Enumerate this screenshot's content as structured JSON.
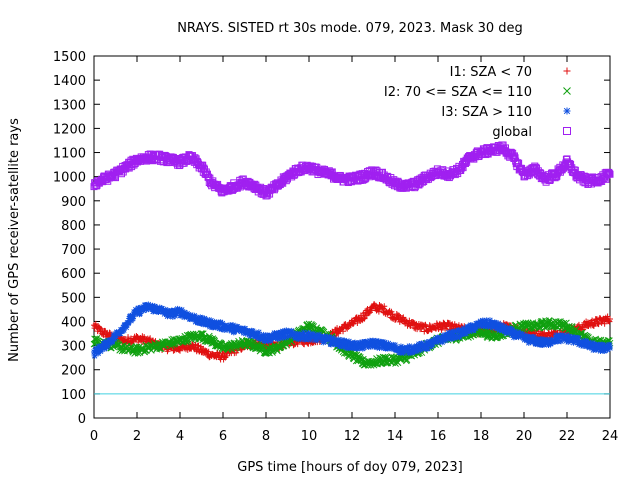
{
  "chart_data": {
    "type": "scatter",
    "title": "NRAYS. SISTED rt 30s mode. 079, 2023. Mask 30 deg",
    "xlabel": "GPS time [hours of doy 079, 2023]",
    "ylabel": "Number of GPS receiver-satellite rays",
    "xlim": [
      0,
      24
    ],
    "ylim": [
      0,
      1500
    ],
    "x_ticks": [
      0,
      2,
      4,
      6,
      8,
      10,
      12,
      14,
      16,
      18,
      20,
      22,
      24
    ],
    "y_ticks": [
      0,
      100,
      200,
      300,
      400,
      500,
      600,
      700,
      800,
      900,
      1000,
      1100,
      1200,
      1300,
      1400,
      1500
    ],
    "legend_position": "top-right",
    "reference_line": {
      "y": 100,
      "color": "#40d0e0"
    },
    "series": [
      {
        "name": "I1: SZA < 70",
        "marker": "+",
        "color": "#e01010",
        "x": [
          0,
          0.5,
          1,
          1.5,
          2,
          2.5,
          3,
          3.5,
          4,
          4.5,
          5,
          5.5,
          6,
          6.5,
          7,
          7.5,
          8,
          8.5,
          9,
          9.5,
          10,
          10.5,
          11,
          11.5,
          12,
          12.5,
          13,
          13.5,
          14,
          14.5,
          15,
          15.5,
          16,
          16.5,
          17,
          17.5,
          18,
          18.5,
          19,
          19.5,
          20,
          20.5,
          21,
          21.5,
          22,
          22.5,
          23,
          23.5,
          24
        ],
        "y": [
          380,
          350,
          330,
          320,
          330,
          320,
          300,
          290,
          290,
          300,
          280,
          260,
          255,
          280,
          300,
          310,
          300,
          300,
          310,
          320,
          320,
          330,
          340,
          370,
          390,
          420,
          460,
          450,
          420,
          400,
          380,
          370,
          380,
          380,
          370,
          360,
          360,
          365,
          380,
          370,
          360,
          350,
          340,
          350,
          360,
          370,
          390,
          400,
          410
        ]
      },
      {
        "name": "I2: 70 <= SZA <= 110",
        "marker": "x",
        "color": "#10a010",
        "x": [
          0,
          0.5,
          1,
          1.5,
          2,
          2.5,
          3,
          3.5,
          4,
          4.5,
          5,
          5.5,
          6,
          6.5,
          7,
          7.5,
          8,
          8.5,
          9,
          9.5,
          10,
          10.5,
          11,
          11.5,
          12,
          12.5,
          13,
          13.5,
          14,
          14.5,
          15,
          15.5,
          16,
          16.5,
          17,
          17.5,
          18,
          18.5,
          19,
          19.5,
          20,
          20.5,
          21,
          21.5,
          22,
          22.5,
          23,
          23.5,
          24
        ],
        "y": [
          320,
          310,
          300,
          285,
          280,
          290,
          300,
          310,
          320,
          335,
          340,
          320,
          290,
          300,
          310,
          300,
          280,
          290,
          320,
          350,
          380,
          360,
          330,
          290,
          260,
          230,
          230,
          240,
          240,
          250,
          270,
          300,
          320,
          330,
          340,
          350,
          360,
          340,
          350,
          370,
          380,
          380,
          390,
          390,
          380,
          350,
          320,
          310,
          310
        ]
      },
      {
        "name": "I3: SZA > 110",
        "marker": "*",
        "color": "#1050e0",
        "x": [
          0,
          0.5,
          1,
          1.5,
          2,
          2.5,
          3,
          3.5,
          4,
          4.5,
          5,
          5.5,
          6,
          6.5,
          7,
          7.5,
          8,
          8.5,
          9,
          9.5,
          10,
          10.5,
          11,
          11.5,
          12,
          12.5,
          13,
          13.5,
          14,
          14.5,
          15,
          15.5,
          16,
          16.5,
          17,
          17.5,
          18,
          18.5,
          19,
          19.5,
          20,
          20.5,
          21,
          21.5,
          22,
          22.5,
          23,
          23.5,
          24
        ],
        "y": [
          270,
          300,
          340,
          390,
          440,
          460,
          450,
          430,
          440,
          420,
          400,
          390,
          380,
          370,
          360,
          350,
          330,
          340,
          350,
          340,
          340,
          330,
          320,
          310,
          300,
          300,
          310,
          300,
          290,
          280,
          290,
          300,
          320,
          340,
          350,
          370,
          390,
          390,
          370,
          350,
          330,
          320,
          310,
          330,
          330,
          320,
          300,
          290,
          290
        ]
      },
      {
        "name": "global",
        "marker": "square",
        "color": "#a020f0",
        "x": [
          0,
          0.5,
          1,
          1.5,
          2,
          2.5,
          3,
          3.5,
          4,
          4.5,
          5,
          5.5,
          6,
          6.5,
          7,
          7.5,
          8,
          8.5,
          9,
          9.5,
          10,
          10.5,
          11,
          11.5,
          12,
          12.5,
          13,
          13.5,
          14,
          14.5,
          15,
          15.5,
          16,
          16.5,
          17,
          17.5,
          18,
          18.5,
          19,
          19.5,
          20,
          20.5,
          21,
          21.5,
          22,
          22.5,
          23,
          23.5,
          24
        ],
        "y": [
          970,
          990,
          1010,
          1040,
          1070,
          1080,
          1080,
          1070,
          1060,
          1080,
          1040,
          970,
          940,
          960,
          980,
          960,
          930,
          960,
          1000,
          1030,
          1040,
          1020,
          1010,
          990,
          990,
          1000,
          1020,
          1000,
          970,
          960,
          970,
          1000,
          1020,
          1010,
          1030,
          1080,
          1100,
          1110,
          1120,
          1080,
          1010,
          1030,
          990,
          1010,
          1060,
          1000,
          980,
          990,
          1010
        ]
      }
    ]
  }
}
